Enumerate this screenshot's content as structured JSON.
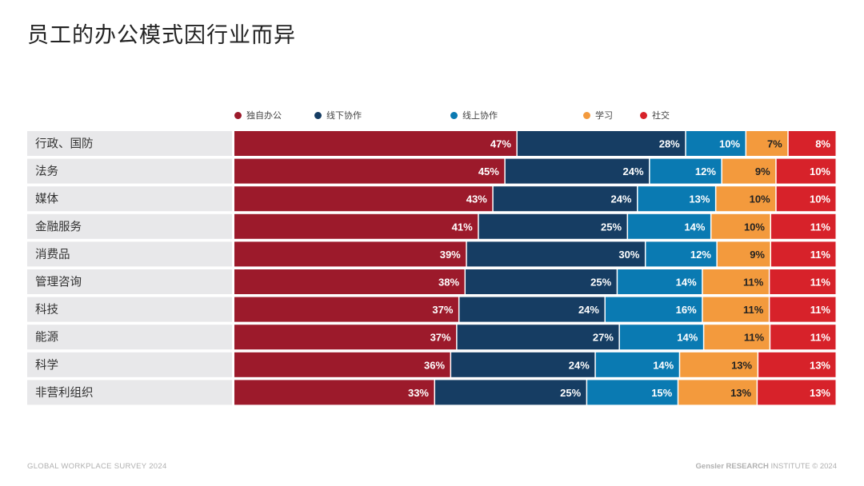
{
  "title": "员工的办公模式因行业而异",
  "footer": {
    "left": "GLOBAL WORKPLACE SURVEY 2024",
    "right_brand": "Gensler RESEARCH",
    "right_rest": " INSTITUTE © 2024"
  },
  "colors": {
    "独自办公": "#9c1a2b",
    "线下协作": "#163d63",
    "线上协作": "#0a7ab2",
    "学习": "#f39a3d",
    "社交": "#d7222a",
    "label_bg": "#e8e8ea"
  },
  "chart_data": {
    "type": "bar",
    "orientation": "horizontal",
    "stacked": true,
    "unit": "%",
    "legend_position": "top",
    "categories": [
      "行政、国防",
      "法务",
      "媒体",
      "金融服务",
      "消费品",
      "管理咨询",
      "科技",
      "能源",
      "科学",
      "非营利组织"
    ],
    "series": [
      {
        "name": "独自办公",
        "values": [
          47,
          45,
          43,
          41,
          39,
          38,
          37,
          37,
          36,
          33
        ]
      },
      {
        "name": "线下协作",
        "values": [
          28,
          24,
          24,
          25,
          30,
          25,
          24,
          27,
          24,
          25
        ]
      },
      {
        "name": "线上协作",
        "values": [
          10,
          12,
          13,
          14,
          12,
          14,
          16,
          14,
          14,
          15
        ]
      },
      {
        "name": "学习",
        "values": [
          7,
          9,
          10,
          10,
          9,
          11,
          11,
          11,
          13,
          13
        ]
      },
      {
        "name": "社交",
        "values": [
          8,
          10,
          10,
          11,
          11,
          11,
          11,
          11,
          13,
          13
        ]
      }
    ]
  }
}
